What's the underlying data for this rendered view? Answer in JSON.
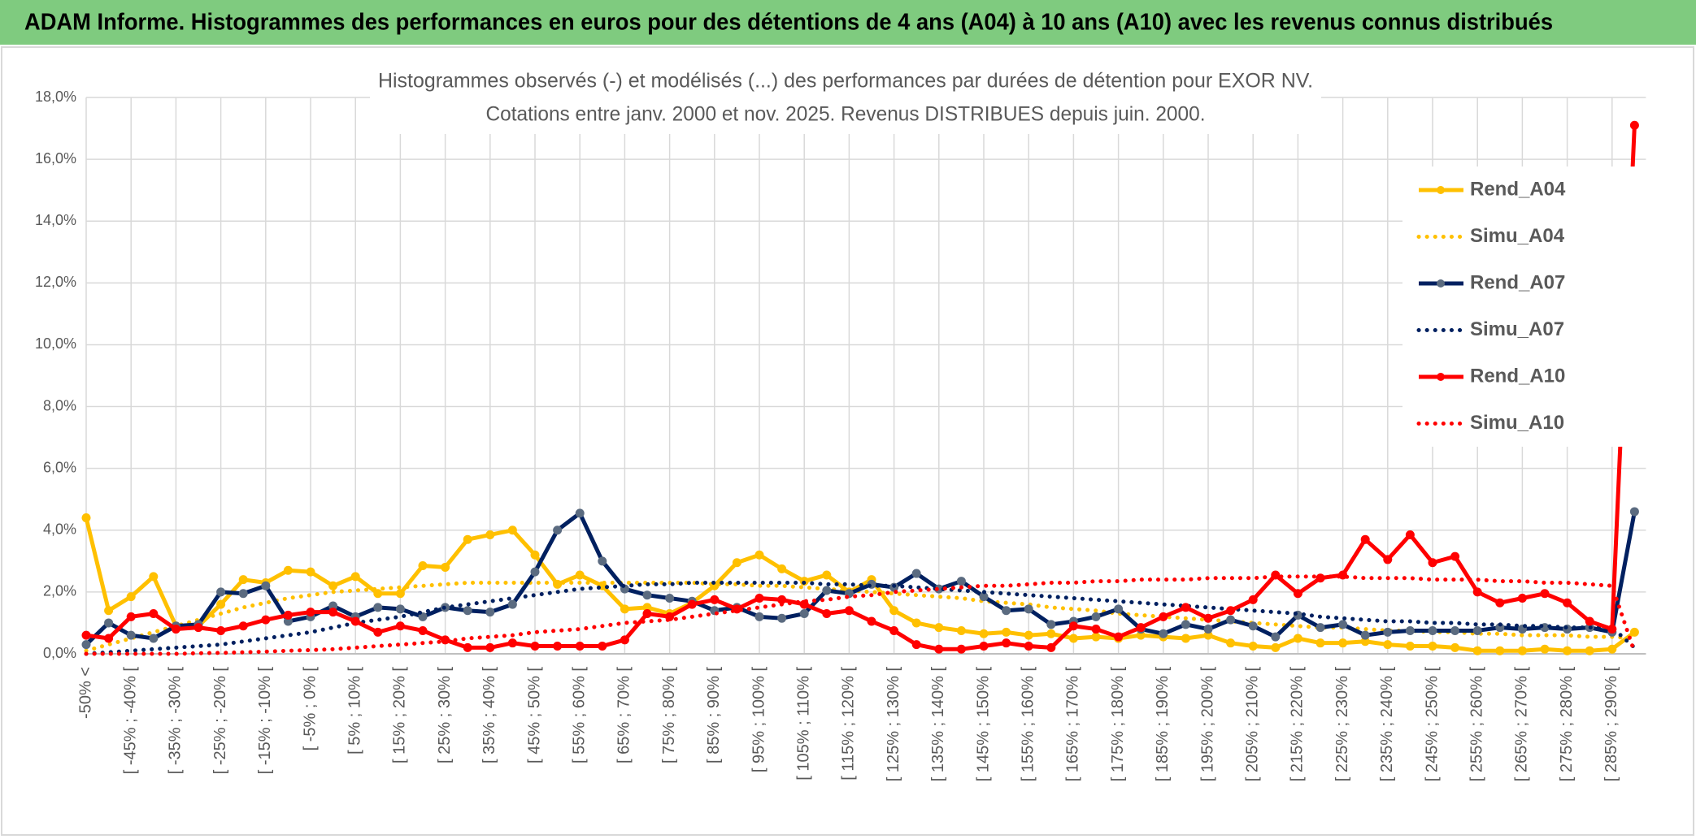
{
  "header": {
    "title": "ADAM Informe. Histogrammes des performances en euros pour des détentions de 4 ans (A04) à 10 ans (A10) avec les revenus connus distribués"
  },
  "chart_data": {
    "type": "line",
    "title": "Histogrammes observés (-) et modélisés (...) des performances par durées de détention pour EXOR NV.",
    "subtitle": "Cotations entre janv. 2000 et nov. 2025. Revenus DISTRIBUES depuis juin. 2000.",
    "categories": [
      "-50% <",
      null,
      "[ -45% ; -40% [",
      null,
      "[ -35% ; -30% [",
      null,
      "[ -25% ; -20% [",
      null,
      "[ -15% ; -10% [",
      null,
      "[ -5% ; 0% [",
      null,
      "[ 5% ; 10% [",
      null,
      "[ 15% ; 20% [",
      null,
      "[ 25% ; 30% [",
      null,
      "[ 35% ; 40% [",
      null,
      "[ 45% ; 50% [",
      null,
      "[ 55% ; 60% [",
      null,
      "[ 65% ; 70% [",
      null,
      "[ 75% ; 80% [",
      null,
      "[ 85% ; 90% [",
      null,
      "[ 95% ; 100% [",
      null,
      "[ 105% ; 110% [",
      null,
      "[ 115% ; 120% [",
      null,
      "[ 125% ; 130% [",
      null,
      "[ 135% ; 140% [",
      null,
      "[ 145% ; 150% [",
      null,
      "[ 155% ; 160% [",
      null,
      "[ 165% ; 170% [",
      null,
      "[ 175% ; 180% [",
      null,
      "[ 185% ; 190% [",
      null,
      "[ 195% ; 200% [",
      null,
      "[ 205% ; 210% [",
      null,
      "[ 215% ; 220% [",
      null,
      "[ 225% ; 230% [",
      null,
      "[ 235% ; 240% [",
      null,
      "[ 245% ; 250% [",
      null,
      "[ 255% ; 260% [",
      null,
      "[ 265% ; 270% [",
      null,
      "[ 275% ; 280% [",
      null,
      "[ 285% ; 290% [",
      null
    ],
    "series": [
      {
        "name": "Rend_A04",
        "color": "#FFC000",
        "line_style": "solid",
        "marker": true,
        "marker_color": "#FFC000",
        "values": [
          4.4,
          1.4,
          1.85,
          2.5,
          0.9,
          0.9,
          1.6,
          2.4,
          2.3,
          2.7,
          2.65,
          2.2,
          2.5,
          1.95,
          1.95,
          2.85,
          2.8,
          3.7,
          3.85,
          4.0,
          3.2,
          2.25,
          2.55,
          2.2,
          1.45,
          1.5,
          1.3,
          1.65,
          2.2,
          2.95,
          3.2,
          2.75,
          2.35,
          2.55,
          2.0,
          2.4,
          1.4,
          1.0,
          0.85,
          0.75,
          0.65,
          0.7,
          0.6,
          0.65,
          0.5,
          0.55,
          0.5,
          0.6,
          0.55,
          0.5,
          0.6,
          0.35,
          0.25,
          0.2,
          0.5,
          0.35,
          0.35,
          0.4,
          0.3,
          0.25,
          0.25,
          0.2,
          0.1,
          0.1,
          0.1,
          0.15,
          0.1,
          0.1,
          0.15,
          0.7
        ]
      },
      {
        "name": "Simu_A04",
        "color": "#FFC000",
        "line_style": "dotted",
        "marker": false,
        "values": [
          0.1,
          0.3,
          0.5,
          0.7,
          0.9,
          1.1,
          1.3,
          1.5,
          1.65,
          1.8,
          1.9,
          2.0,
          2.05,
          2.1,
          2.15,
          2.2,
          2.25,
          2.3,
          2.3,
          2.3,
          2.3,
          2.3,
          2.3,
          2.3,
          2.3,
          2.3,
          2.3,
          2.3,
          2.25,
          2.25,
          2.2,
          2.2,
          2.15,
          2.1,
          2.05,
          2.0,
          1.95,
          1.9,
          1.85,
          1.8,
          1.7,
          1.65,
          1.6,
          1.5,
          1.45,
          1.4,
          1.3,
          1.25,
          1.2,
          1.15,
          1.1,
          1.05,
          1.0,
          0.95,
          0.9,
          0.85,
          0.85,
          0.8,
          0.75,
          0.75,
          0.7,
          0.7,
          0.65,
          0.65,
          0.6,
          0.6,
          0.6,
          0.55,
          0.55,
          0.5
        ]
      },
      {
        "name": "Rend_A07",
        "color": "#002060",
        "line_style": "solid",
        "marker": true,
        "marker_color": "#5B6B80",
        "values": [
          0.3,
          1.0,
          0.6,
          0.5,
          0.9,
          0.95,
          2.0,
          1.95,
          2.2,
          1.05,
          1.2,
          1.55,
          1.2,
          1.5,
          1.45,
          1.2,
          1.5,
          1.4,
          1.35,
          1.6,
          2.65,
          4.0,
          4.55,
          3.0,
          2.1,
          1.9,
          1.8,
          1.7,
          1.4,
          1.5,
          1.2,
          1.15,
          1.3,
          2.05,
          1.95,
          2.25,
          2.15,
          2.6,
          2.1,
          2.35,
          1.85,
          1.4,
          1.45,
          0.95,
          1.05,
          1.2,
          1.45,
          0.8,
          0.65,
          0.95,
          0.8,
          1.1,
          0.9,
          0.55,
          1.25,
          0.85,
          0.95,
          0.6,
          0.7,
          0.75,
          0.75,
          0.75,
          0.75,
          0.85,
          0.8,
          0.85,
          0.8,
          0.85,
          0.7,
          4.6
        ]
      },
      {
        "name": "Simu_A07",
        "color": "#002060",
        "line_style": "dotted",
        "marker": false,
        "values": [
          0.0,
          0.05,
          0.1,
          0.15,
          0.2,
          0.25,
          0.3,
          0.4,
          0.5,
          0.6,
          0.7,
          0.85,
          1.0,
          1.1,
          1.2,
          1.35,
          1.5,
          1.6,
          1.7,
          1.8,
          1.9,
          2.0,
          2.1,
          2.15,
          2.2,
          2.25,
          2.25,
          2.3,
          2.3,
          2.3,
          2.3,
          2.3,
          2.3,
          2.25,
          2.25,
          2.2,
          2.2,
          2.15,
          2.1,
          2.05,
          2.0,
          1.95,
          1.9,
          1.85,
          1.8,
          1.75,
          1.7,
          1.65,
          1.6,
          1.55,
          1.5,
          1.45,
          1.4,
          1.35,
          1.3,
          1.2,
          1.15,
          1.1,
          1.05,
          1.05,
          1.0,
          1.0,
          0.95,
          0.95,
          0.9,
          0.9,
          0.85,
          0.85,
          0.85,
          0.2
        ]
      },
      {
        "name": "Rend_A10",
        "color": "#FF0000",
        "line_style": "solid",
        "marker": true,
        "marker_color": "#FF0000",
        "values": [
          0.6,
          0.5,
          1.2,
          1.3,
          0.8,
          0.85,
          0.75,
          0.9,
          1.1,
          1.25,
          1.35,
          1.35,
          1.05,
          0.7,
          0.9,
          0.75,
          0.45,
          0.2,
          0.2,
          0.35,
          0.25,
          0.25,
          0.25,
          0.25,
          0.45,
          1.3,
          1.2,
          1.6,
          1.75,
          1.45,
          1.8,
          1.75,
          1.6,
          1.3,
          1.4,
          1.05,
          0.75,
          0.3,
          0.15,
          0.15,
          0.25,
          0.35,
          0.25,
          0.2,
          0.9,
          0.8,
          0.55,
          0.85,
          1.2,
          1.5,
          1.15,
          1.4,
          1.75,
          2.55,
          1.95,
          2.45,
          2.55,
          3.7,
          3.05,
          3.85,
          2.95,
          3.15,
          2.0,
          1.65,
          1.8,
          1.95,
          1.65,
          1.05,
          0.8,
          17.1
        ]
      },
      {
        "name": "Simu_A10",
        "color": "#FF0000",
        "line_style": "dotted",
        "marker": false,
        "values": [
          0,
          0,
          0,
          0,
          0,
          0.02,
          0.03,
          0.05,
          0.07,
          0.1,
          0.12,
          0.15,
          0.2,
          0.25,
          0.3,
          0.35,
          0.4,
          0.5,
          0.55,
          0.6,
          0.7,
          0.75,
          0.8,
          0.9,
          1.0,
          1.05,
          1.1,
          1.2,
          1.3,
          1.4,
          1.5,
          1.6,
          1.7,
          1.75,
          1.85,
          1.9,
          2.0,
          2.05,
          2.1,
          2.15,
          2.2,
          2.2,
          2.25,
          2.3,
          2.3,
          2.35,
          2.35,
          2.4,
          2.4,
          2.4,
          2.45,
          2.45,
          2.45,
          2.5,
          2.5,
          2.5,
          2.5,
          2.45,
          2.45,
          2.45,
          2.4,
          2.4,
          2.4,
          2.35,
          2.35,
          2.3,
          2.3,
          2.25,
          2.2,
          0.05
        ]
      }
    ],
    "ylim": [
      0,
      18
    ],
    "yticks": [
      {
        "value": 0,
        "label": "0,0%"
      },
      {
        "value": 2,
        "label": "2,0%"
      },
      {
        "value": 4,
        "label": "4,0%"
      },
      {
        "value": 6,
        "label": "6,0%"
      },
      {
        "value": 8,
        "label": "8,0%"
      },
      {
        "value": 10,
        "label": "10,0%"
      },
      {
        "value": 12,
        "label": "12,0%"
      },
      {
        "value": 14,
        "label": "14,0%"
      },
      {
        "value": 16,
        "label": "16,0%"
      },
      {
        "value": 18,
        "label": "18,0%"
      }
    ],
    "grid": true,
    "legend": "right"
  }
}
